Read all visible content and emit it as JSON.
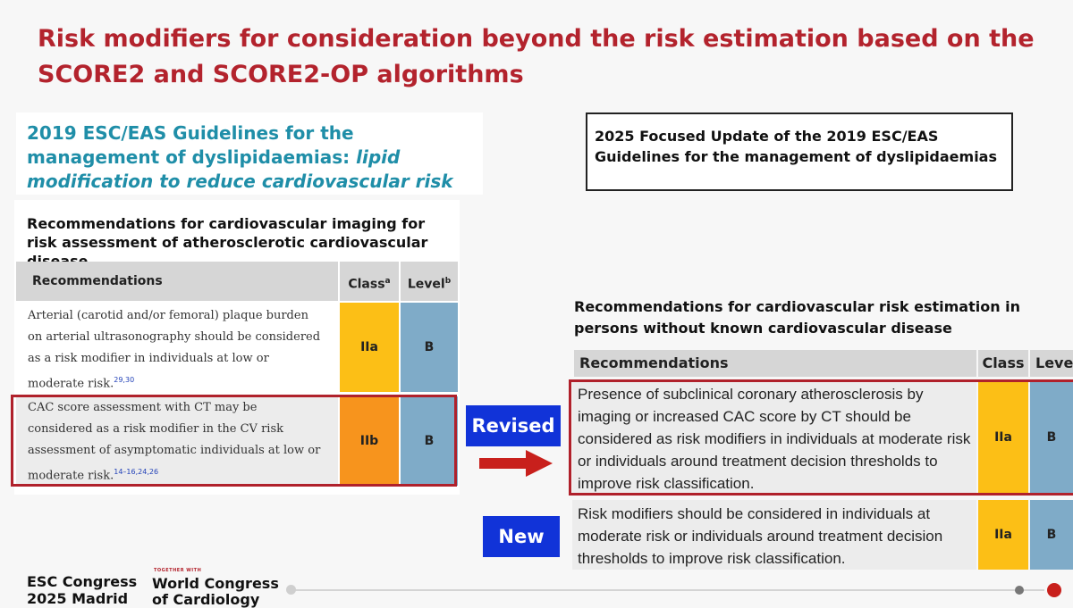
{
  "slide_title": "Risk modifiers for consideration beyond the risk estimation based on the SCORE2 and SCORE2-OP algorithms",
  "left": {
    "guideline_title_plain": "2019 ESC/EAS Guidelines for the management of dyslipidaemias: ",
    "guideline_title_italic": "lipid modification to reduce cardiovascular risk",
    "table_title": "Recommendations for cardiovascular imaging for risk assessment of atherosclerotic cardiovascular disease",
    "headers": {
      "recommendations": "Recommendations",
      "class": "Class",
      "class_sup": "a",
      "level": "Level",
      "level_sup": "b"
    },
    "rows": [
      {
        "text": "Arterial (carotid and/or femoral) plaque burden on arterial ultrasonography should be considered as a risk modifier in individuals at low or moderate risk.",
        "refs": "29,30",
        "class": "IIa",
        "level": "B"
      },
      {
        "text": "CAC score assessment with CT may be considered as a risk modifier in the CV risk assessment of asymptomatic individuals at low or moderate risk.",
        "refs": "14–16,24,26",
        "class": "IIb",
        "level": "B"
      }
    ],
    "colors": {
      "class_iia": "#fcbf16",
      "class_iib": "#f7941d",
      "level": "#7fabc8"
    }
  },
  "right": {
    "guideline_title": "2025 Focused Update of the 2019 ESC/EAS Guidelines for the management of dyslipidaemias",
    "table_title": "Recommendations for cardiovascular risk estimation in persons without known cardiovascular disease",
    "headers": {
      "recommendations": "Recommendations",
      "class": "Class",
      "level": "Level"
    },
    "rows": [
      {
        "text": "Presence of subclinical coronary atherosclerosis by imaging or increased CAC score by CT should be considered as risk modifiers in individuals at moderate risk or individuals around treatment decision thresholds to improve risk classification.",
        "class": "IIa",
        "level": "B"
      },
      {
        "text": "Risk modifiers should be considered in individuals at moderate risk or individuals around treatment decision thresholds to improve risk classification.",
        "class": "IIa",
        "level": "B"
      }
    ]
  },
  "tags": {
    "revised": "Revised",
    "new": "New"
  },
  "footer": {
    "esc_congress": "ESC Congress",
    "esc_year_city": "2025 Madrid",
    "together_with": "TOGETHER WITH",
    "wcc_line1": "World Congress",
    "wcc_line2": "of Cardiology"
  },
  "colors": {
    "title_red": "#b3232d",
    "guideline_teal": "#1f8ea8",
    "tag_blue": "#1133d8",
    "arrow_red": "#c8201c",
    "highlight_red": "#b0212b"
  }
}
